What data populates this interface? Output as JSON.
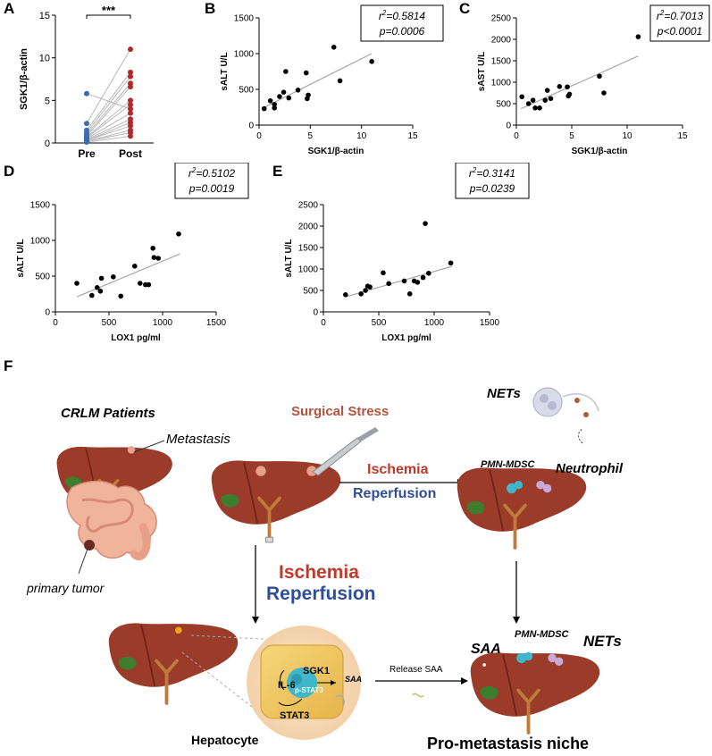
{
  "panels": {
    "A": "A",
    "B": "B",
    "C": "C",
    "D": "D",
    "E": "E",
    "F": "F"
  },
  "colors": {
    "pre": "#3a6db5",
    "post": "#b02a2a",
    "pair_line": "#b8b8b8",
    "fit_line": "#a8a8a8",
    "liver": "#9b3b2a",
    "liver_dark": "#7a2a1e",
    "gall": "#3f7d2e",
    "vessel": "#c07a3a",
    "ischemia": "#c0392b",
    "reperfusion": "#2f4e9a",
    "surgical": "#b5523b",
    "hepatocyte_bg": "#f6dcc0",
    "hepatocyte_cell": "#f0c860",
    "nucleus": "#3fb6c9"
  },
  "chart_data": [
    {
      "id": "A",
      "type": "scatter",
      "title": "",
      "xlabel": "",
      "ylabel": "SGK1/β-actin",
      "categories": [
        "Pre",
        "Post"
      ],
      "ylim": [
        0,
        15
      ],
      "yticks": [
        "0",
        "5",
        "10",
        "15"
      ],
      "significance": "***",
      "series": [
        {
          "name": "Pre",
          "values": [
            0.1,
            0.2,
            0.2,
            0.3,
            0.3,
            0.4,
            0.5,
            0.6,
            0.7,
            0.8,
            1.0,
            1.2,
            1.5,
            2.3,
            5.8
          ]
        },
        {
          "name": "Post",
          "values": [
            0.8,
            1.2,
            1.5,
            2.0,
            2.4,
            2.8,
            3.5,
            4.5,
            5.0,
            6.6,
            7.0,
            7.8,
            8.3,
            11.0,
            4.0
          ]
        }
      ]
    },
    {
      "id": "B",
      "type": "scatter",
      "xlabel": "SGK1/β-actin",
      "ylabel": "sALT U/L",
      "xlim": [
        0,
        15
      ],
      "ylim": [
        0,
        1500
      ],
      "xticks": [
        "0",
        "5",
        "10",
        "15"
      ],
      "yticks": [
        "0",
        "500",
        "1000",
        "1500"
      ],
      "stat_r2_prefix": "r",
      "stat_r2_sup": "2",
      "stat_r2_value": "=0.5814",
      "stat_p": "p=0.0006",
      "fit": [
        [
          0.4,
          240
        ],
        [
          11,
          1000
        ]
      ],
      "points": [
        [
          0.5,
          230
        ],
        [
          1.1,
          340
        ],
        [
          1.5,
          290
        ],
        [
          1.5,
          240
        ],
        [
          2.0,
          400
        ],
        [
          2.4,
          460
        ],
        [
          2.6,
          750
        ],
        [
          2.9,
          380
        ],
        [
          3.8,
          490
        ],
        [
          4.6,
          730
        ],
        [
          4.7,
          370
        ],
        [
          4.8,
          420
        ],
        [
          7.3,
          1090
        ],
        [
          7.9,
          620
        ],
        [
          11.0,
          890
        ]
      ]
    },
    {
      "id": "C",
      "type": "scatter",
      "xlabel": "SGK1/β-actin",
      "ylabel": "sAST U/L",
      "xlim": [
        0,
        15
      ],
      "ylim": [
        0,
        2500
      ],
      "xticks": [
        "0",
        "5",
        "10",
        "15"
      ],
      "yticks": [
        "0",
        "500",
        "1000",
        "1500",
        "2000",
        "2500"
      ],
      "stat_r2_prefix": "r",
      "stat_r2_sup": "2",
      "stat_r2_value": "=0.7013",
      "stat_p": "p<0.0001",
      "fit": [
        [
          0.4,
          380
        ],
        [
          11,
          1610
        ]
      ],
      "points": [
        [
          0.5,
          660
        ],
        [
          1.1,
          500
        ],
        [
          1.5,
          580
        ],
        [
          1.7,
          400
        ],
        [
          2.1,
          400
        ],
        [
          2.6,
          580
        ],
        [
          2.8,
          810
        ],
        [
          3.1,
          620
        ],
        [
          3.9,
          900
        ],
        [
          4.6,
          890
        ],
        [
          4.7,
          680
        ],
        [
          4.8,
          720
        ],
        [
          7.5,
          1140
        ],
        [
          7.9,
          750
        ],
        [
          11.0,
          2060
        ]
      ]
    },
    {
      "id": "D",
      "type": "scatter",
      "xlabel": "LOX1 pg/ml",
      "ylabel": "sALT U/L",
      "xlim": [
        0,
        1500
      ],
      "ylim": [
        0,
        1500
      ],
      "xticks": [
        "0",
        "500",
        "1000",
        "1500"
      ],
      "yticks": [
        "0",
        "500",
        "1000",
        "1500"
      ],
      "stat_r2_prefix": "r",
      "stat_r2_sup": "2",
      "stat_r2_value": "=0.5102",
      "stat_p": "p=0.0019",
      "fit": [
        [
          200,
          210
        ],
        [
          1160,
          810
        ]
      ],
      "points": [
        [
          200,
          400
        ],
        [
          340,
          230
        ],
        [
          390,
          340
        ],
        [
          420,
          290
        ],
        [
          430,
          470
        ],
        [
          540,
          490
        ],
        [
          610,
          220
        ],
        [
          740,
          640
        ],
        [
          790,
          400
        ],
        [
          840,
          380
        ],
        [
          870,
          380
        ],
        [
          910,
          890
        ],
        [
          920,
          760
        ],
        [
          960,
          750
        ],
        [
          1150,
          1090
        ]
      ]
    },
    {
      "id": "E",
      "type": "scatter",
      "xlabel": "LOX1 pg/ml",
      "ylabel": "sALT U/L",
      "xlim": [
        0,
        1500
      ],
      "ylim": [
        0,
        2500
      ],
      "xticks": [
        "0",
        "500",
        "1000",
        "1500"
      ],
      "yticks": [
        "0",
        "500",
        "1000",
        "1500",
        "2000",
        "2500"
      ],
      "stat_r2_prefix": "r",
      "stat_r2_sup": "2",
      "stat_r2_value": "=0.3141",
      "stat_p": "p=0.0239",
      "fit": [
        [
          200,
          350
        ],
        [
          1160,
          1060
        ]
      ],
      "points": [
        [
          200,
          400
        ],
        [
          340,
          420
        ],
        [
          380,
          500
        ],
        [
          400,
          600
        ],
        [
          420,
          580
        ],
        [
          540,
          910
        ],
        [
          590,
          660
        ],
        [
          730,
          720
        ],
        [
          780,
          420
        ],
        [
          820,
          720
        ],
        [
          850,
          690
        ],
        [
          900,
          800
        ],
        [
          920,
          2060
        ],
        [
          950,
          900
        ],
        [
          1150,
          1140
        ]
      ]
    }
  ],
  "diagram": {
    "crlm_patients": "CRLM Patients",
    "metastasis": "Metastasis",
    "primary_tumor": "primary tumor",
    "surgical_stress": "Surgical Stress",
    "ischemia_small": "Ischemia",
    "reperfusion_small": "Reperfusion",
    "nets_top": "NETs",
    "pmn_mdsc_top": "PMN-MDSC",
    "neutrophil": "Neutrophil",
    "ischemia_big": "Ischemia",
    "reperfusion_big": "Reperfusion",
    "sgk1": "SGK1",
    "il6": "IL-6",
    "pstat3": "p-STAT3",
    "stat3": "STAT3",
    "saa_small": "SAA",
    "release_saa": "Release SAA",
    "hepatocyte": "Hepatocyte",
    "saa_big": "SAA",
    "pmn_mdsc_bottom": "PMN-MDSC",
    "nets_bottom": "NETs",
    "pro_metastasis": "Pro-metastasis niche"
  }
}
